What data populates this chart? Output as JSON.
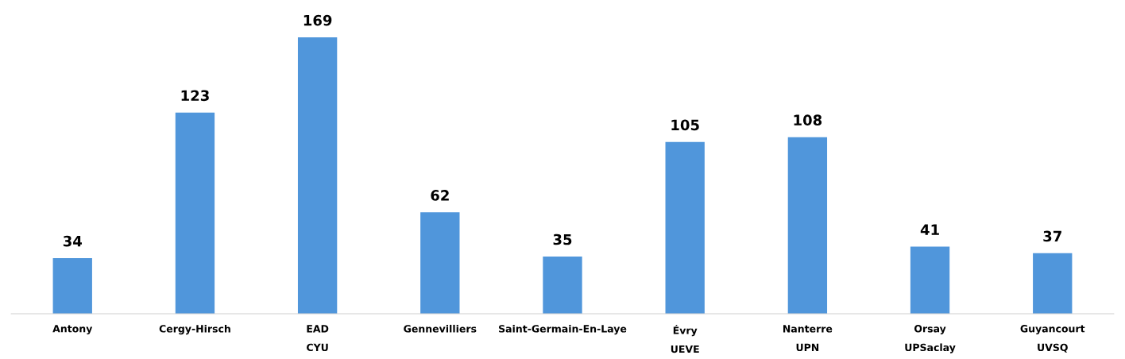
{
  "chart_data": {
    "type": "bar",
    "categories": [
      "Antony",
      "Cergy-Hirsch",
      "EAD\nCYU",
      "Gennevilliers",
      "Saint-Germain-En-Laye",
      "Évry\nUEVE",
      "Nanterre\nUPN",
      "Orsay\nUPSaclay",
      "Guyancourt\nUVSQ"
    ],
    "values": [
      34,
      123,
      169,
      62,
      35,
      105,
      108,
      41,
      37
    ],
    "color": "#5096db",
    "data_labels": true,
    "grid": false,
    "legend": false
  }
}
